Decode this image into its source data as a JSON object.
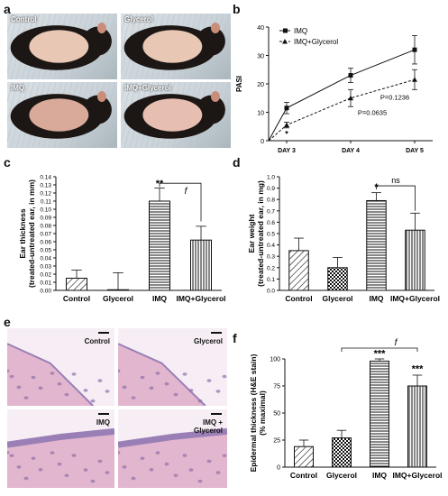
{
  "panels": {
    "a": {
      "letter": "a",
      "photos": [
        "Control",
        "Glycerol",
        "IMQ",
        "IMQ+Glycerol"
      ]
    },
    "e": {
      "letter": "e",
      "photos": [
        "Control",
        "Glycerol",
        "IMQ",
        "IMQ +\nGlycerol"
      ]
    }
  },
  "colors": {
    "axis": "#111111",
    "bar_fill": "#ffffff",
    "cv_dark": "#1a1a1a",
    "photo_bg": "#c9d2d8",
    "mouse_dark": "#1c1714",
    "shaved_skin": "#e8c7b5",
    "tissue_pink": "#e3b6cf",
    "tissue_purple": "#9a7fb6"
  },
  "chart_data": [
    {
      "panel": "b",
      "type": "line",
      "x": [
        "DAY 3",
        "DAY 4",
        "DAY 5"
      ],
      "ylabel": "PASI",
      "ylim": [
        0,
        40
      ],
      "yticks": [
        0,
        10,
        20,
        30,
        40
      ],
      "series": [
        {
          "name": "IMQ",
          "values": [
            11.5,
            23,
            32
          ],
          "errors": [
            2,
            2.5,
            5
          ],
          "marker": "square",
          "linestyle": "solid"
        },
        {
          "name": "IMQ+Glycerol",
          "values": [
            5.5,
            15,
            21.5
          ],
          "errors": [
            1,
            3,
            3.5
          ],
          "marker": "triangle",
          "linestyle": "dashed"
        }
      ],
      "annotations": [
        {
          "text": "*"
        },
        {
          "text": "P=0.0635"
        },
        {
          "text": "P=0.1236"
        }
      ]
    },
    {
      "panel": "c",
      "type": "bar",
      "categories": [
        "Control",
        "Glycerol",
        "IMQ",
        "IMQ+Glycerol"
      ],
      "values": [
        0.015,
        0.0008,
        0.11,
        0.062
      ],
      "errors": [
        0.01,
        0.021,
        0.016,
        0.017
      ],
      "patterns": [
        "hatch",
        "solid",
        "hlines",
        "vlines"
      ],
      "ylabel": "Ear thickness\n(treated-untreated ear, in mm)",
      "ylim": [
        0,
        0.14
      ],
      "yticks": [
        "0.00",
        "0.01",
        "0.02",
        "0.03",
        "0.04",
        "0.05",
        "0.06",
        "0.07",
        "0.08",
        "0.09",
        "0.10",
        "0.11",
        "0.12",
        "0.13",
        "0.14"
      ],
      "annotations": [
        {
          "text": "**"
        },
        {
          "text": "f"
        }
      ]
    },
    {
      "panel": "d",
      "type": "bar",
      "categories": [
        "Control",
        "Glycerol",
        "IMQ",
        "IMQ+Glycerol"
      ],
      "values": [
        0.35,
        0.2,
        0.79,
        0.53
      ],
      "errors": [
        0.11,
        0.09,
        0.07,
        0.15
      ],
      "patterns": [
        "hatch",
        "check",
        "hlines",
        "vlines"
      ],
      "ylabel": "Ear weight\n(treated-untreated ear, in mg)",
      "ylim": [
        0,
        1.0
      ],
      "yticks": [
        "0.0",
        "0.1",
        "0.2",
        "0.3",
        "0.4",
        "0.5",
        "0.6",
        "0.7",
        "0.8",
        "0.9",
        "1.0"
      ],
      "annotations": [
        {
          "text": "*"
        },
        {
          "text": "ns"
        }
      ]
    },
    {
      "panel": "f",
      "type": "bar",
      "categories": [
        "Control",
        "Glycerol",
        "IMQ",
        "IMQ+Glycerol"
      ],
      "values": [
        19,
        27,
        98,
        75
      ],
      "errors": [
        6,
        7,
        2,
        10
      ],
      "patterns": [
        "hatch",
        "check",
        "hlines",
        "vlines"
      ],
      "ylabel": "Epidermal thickness (H&E stain)\n(% maximal)",
      "ylim": [
        0,
        100
      ],
      "yticks": [
        "0",
        "25",
        "50",
        "75",
        "100"
      ],
      "annotations": [
        {
          "text": "***"
        },
        {
          "text": "***"
        },
        {
          "text": "f"
        }
      ]
    }
  ]
}
